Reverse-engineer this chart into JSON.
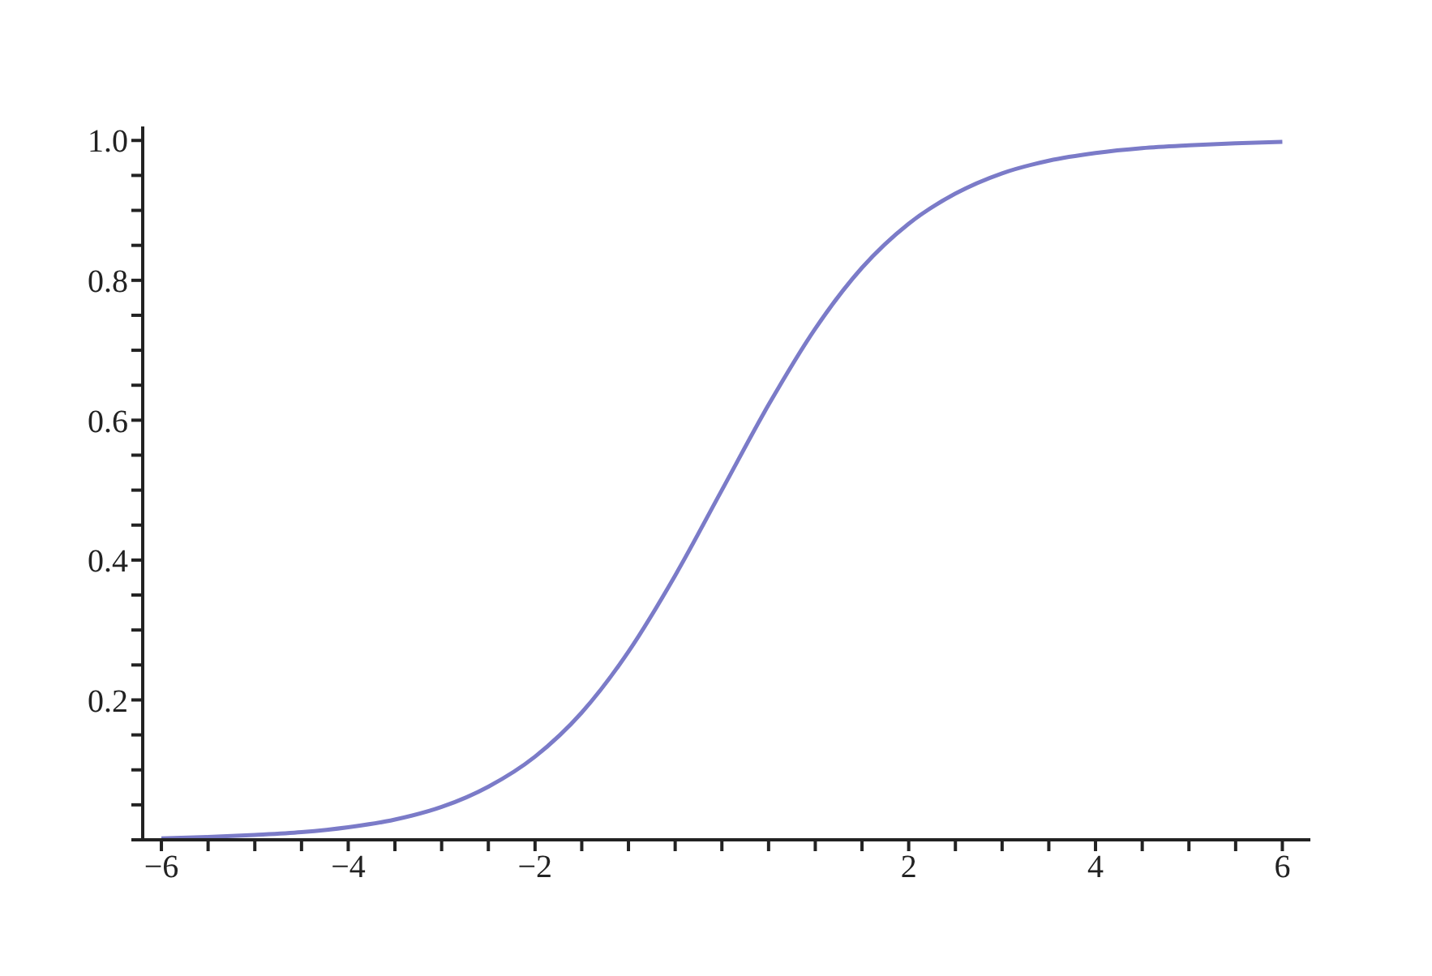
{
  "chart_data": {
    "type": "line",
    "x": [
      -6,
      -5.5,
      -5,
      -4.5,
      -4,
      -3.5,
      -3,
      -2.5,
      -2,
      -1.5,
      -1,
      -0.5,
      0,
      0.5,
      1,
      1.5,
      2,
      2.5,
      3,
      3.5,
      4,
      4.5,
      5,
      5.5,
      6
    ],
    "series": [
      {
        "color": "#7b7bc8",
        "values": [
          0.002,
          0.004,
          0.007,
          0.011,
          0.018,
          0.029,
          0.047,
          0.076,
          0.119,
          0.182,
          0.269,
          0.378,
          0.5,
          0.622,
          0.731,
          0.818,
          0.881,
          0.924,
          0.953,
          0.971,
          0.982,
          0.989,
          0.993,
          0.996,
          0.998
        ]
      }
    ],
    "xlim": [
      -6.2,
      6.3
    ],
    "xticks": [
      {
        "value": -6,
        "label": "−6"
      },
      {
        "value": -5.5,
        "label": null
      },
      {
        "value": -5,
        "label": null
      },
      {
        "value": -4.5,
        "label": null
      },
      {
        "value": -4,
        "label": "−4"
      },
      {
        "value": -3.5,
        "label": null
      },
      {
        "value": -3,
        "label": null
      },
      {
        "value": -2.5,
        "label": null
      },
      {
        "value": -2,
        "label": "−2"
      },
      {
        "value": -1.5,
        "label": null
      },
      {
        "value": -1,
        "label": null
      },
      {
        "value": -0.5,
        "label": null
      },
      {
        "value": 0,
        "label": null
      },
      {
        "value": 0.5,
        "label": null
      },
      {
        "value": 1,
        "label": null
      },
      {
        "value": 1.5,
        "label": null
      },
      {
        "value": 2,
        "label": "2"
      },
      {
        "value": 2.5,
        "label": null
      },
      {
        "value": 3,
        "label": null
      },
      {
        "value": 3.5,
        "label": null
      },
      {
        "value": 4,
        "label": "4"
      },
      {
        "value": 4.5,
        "label": null
      },
      {
        "value": 5,
        "label": null
      },
      {
        "value": 5.5,
        "label": null
      },
      {
        "value": 6,
        "label": "6"
      }
    ],
    "ylim": [
      0,
      1.02
    ],
    "yticks": [
      {
        "value": 0,
        "label": null
      },
      {
        "value": 0.05,
        "label": null
      },
      {
        "value": 0.1,
        "label": null
      },
      {
        "value": 0.15,
        "label": null
      },
      0.2,
      {
        "value": 0.25,
        "label": null
      },
      {
        "value": 0.3,
        "label": null
      },
      {
        "value": 0.35,
        "label": null
      },
      0.4,
      {
        "value": 0.45,
        "label": null
      },
      {
        "value": 0.5,
        "label": null
      },
      {
        "value": 0.55,
        "label": null
      },
      0.6,
      {
        "value": 0.65,
        "label": null
      },
      {
        "value": 0.7,
        "label": null
      },
      {
        "value": 0.75,
        "label": null
      },
      0.8,
      {
        "value": 0.85,
        "label": null
      },
      {
        "value": 0.9,
        "label": null
      },
      {
        "value": 0.95,
        "label": null
      },
      {
        "value": 1,
        "label": "1.0"
      }
    ],
    "grid": false,
    "legend": false,
    "marker": "none",
    "line_style": "solid"
  }
}
